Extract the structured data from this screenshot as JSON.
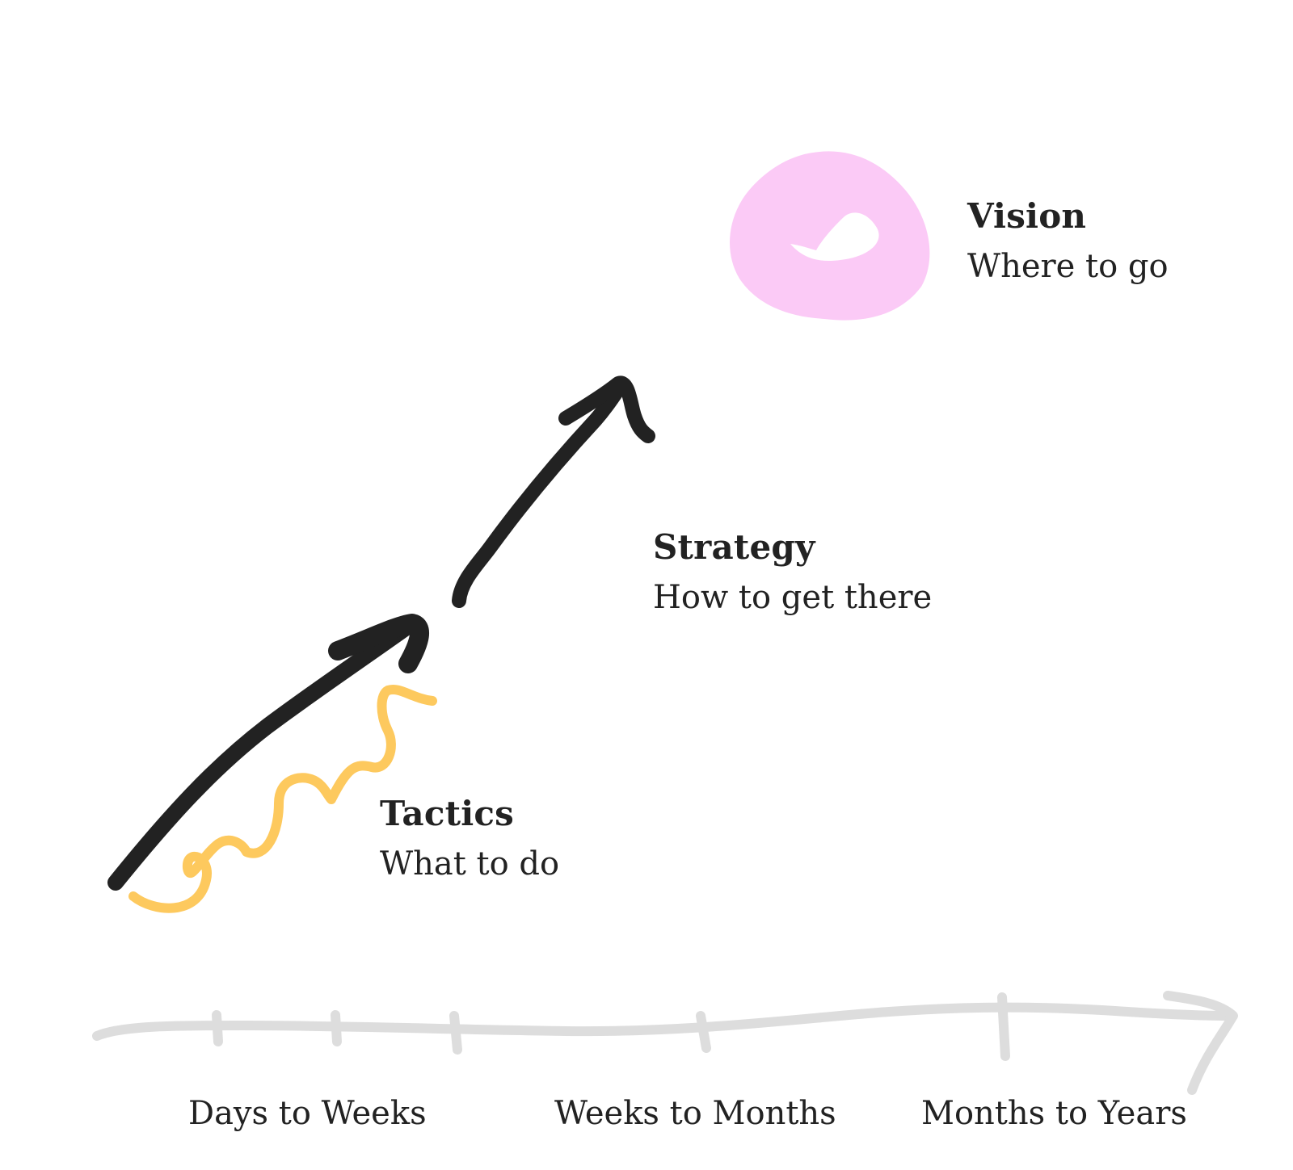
{
  "stages": {
    "vision": {
      "title": "Vision",
      "subtitle": "Where to go"
    },
    "strategy": {
      "title": "Strategy",
      "subtitle": "How to get there"
    },
    "tactics": {
      "title": "Tactics",
      "subtitle": "What to do"
    }
  },
  "timeline": {
    "labels": [
      "Days to Weeks",
      "Weeks to Months",
      "Months to Years"
    ]
  },
  "colors": {
    "ink": "#222222",
    "vision_blob": "#fbcaf6",
    "tactics_squiggle": "#fdc95e",
    "timeline": "#dddddd"
  },
  "icons": {
    "vision": "check-icon"
  }
}
